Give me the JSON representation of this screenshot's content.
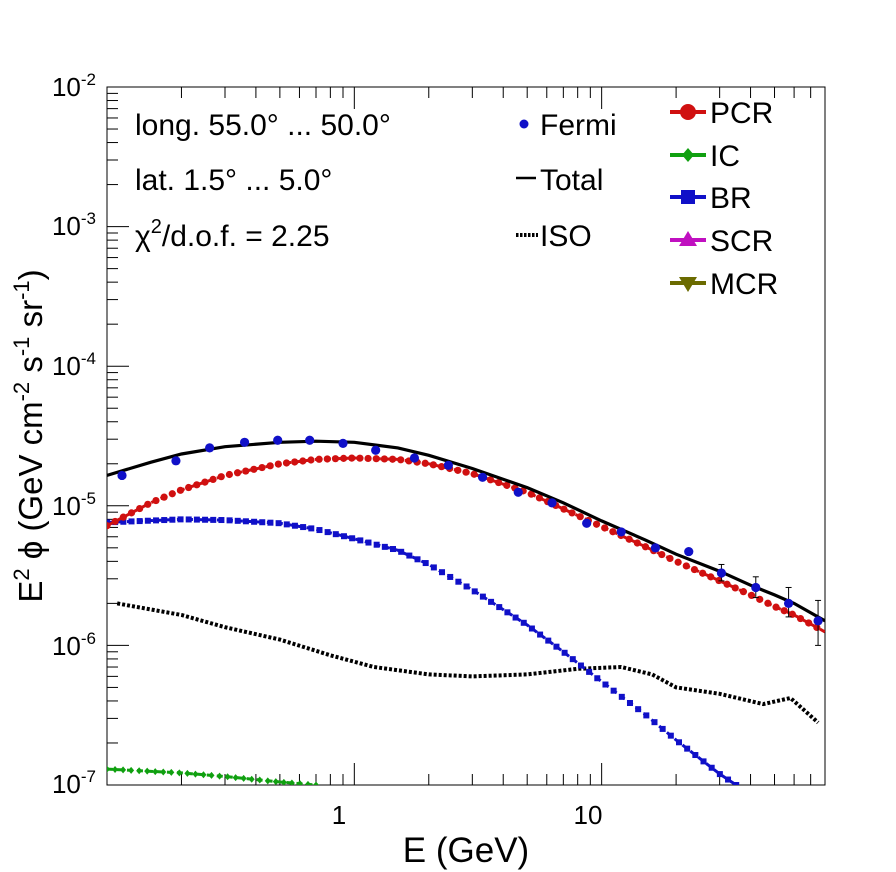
{
  "chart_data": {
    "type": "scatter",
    "xscale": "log",
    "yscale": "log",
    "xlim": [
      0.1,
      80
    ],
    "ylim": [
      1e-07,
      0.01
    ],
    "xlabel": "E (GeV)",
    "ylabel": "E² ϕ (GeV cm⁻² s⁻¹ sr⁻¹)",
    "ylabel_parts": {
      "e": "E",
      "exp2": "2",
      "phi": " ϕ (GeV cm",
      "exp_m2": "-2",
      "s": " s",
      "exp_m1a": "-1",
      "sr": " sr",
      "exp_m1b": "-1",
      "close": ")"
    },
    "xticks": [
      {
        "value": 1,
        "label": "1"
      },
      {
        "value": 10,
        "label": "10"
      }
    ],
    "yticks": [
      {
        "value": 1e-07,
        "base": "10",
        "exp": "-7"
      },
      {
        "value": 1e-06,
        "base": "10",
        "exp": "-6"
      },
      {
        "value": 1e-05,
        "base": "10",
        "exp": "-5"
      },
      {
        "value": 0.0001,
        "base": "10",
        "exp": "-4"
      },
      {
        "value": 0.001,
        "base": "10",
        "exp": "-3"
      },
      {
        "value": 0.01,
        "base": "10",
        "exp": "-2"
      }
    ],
    "annotations": {
      "longitude": "long. 55.0° ... 50.0°",
      "latitude": "lat. 1.5° ... 5.0°",
      "chi_symbol": "χ",
      "chi_exp": "2",
      "chi_rest": "/d.o.f. = 2.25"
    },
    "legend": {
      "left": [
        {
          "name": "Fermi",
          "style": "point",
          "color": "#1010c8"
        },
        {
          "name": "Total",
          "style": "line",
          "color": "#000000"
        },
        {
          "name": "ISO",
          "style": "dotted",
          "color": "#000000"
        }
      ],
      "right": [
        {
          "name": "PCR",
          "marker": "circle",
          "color": "#d01010"
        },
        {
          "name": "IC",
          "marker": "diamond",
          "color": "#10a010"
        },
        {
          "name": "BR",
          "marker": "square",
          "color": "#1010c8"
        },
        {
          "name": "SCR",
          "marker": "triangle-up",
          "color": "#c010c0"
        },
        {
          "name": "MCR",
          "marker": "triangle-down",
          "color": "#6b6b00"
        }
      ]
    },
    "fermi": {
      "x": [
        0.115,
        0.19,
        0.26,
        0.36,
        0.49,
        0.66,
        0.9,
        1.22,
        1.75,
        2.4,
        3.3,
        4.6,
        6.3,
        8.7,
        12,
        16.5,
        22.5,
        30.5,
        42,
        57,
        75
      ],
      "y": [
        1.65e-05,
        2.1e-05,
        2.6e-05,
        2.85e-05,
        2.95e-05,
        2.95e-05,
        2.8e-05,
        2.5e-05,
        2.2e-05,
        1.95e-05,
        1.6e-05,
        1.25e-05,
        1.05e-05,
        7.5e-06,
        6.5e-06,
        5e-06,
        4.7e-06,
        3.3e-06,
        2.6e-06,
        2e-06,
        1.5e-06
      ],
      "err_lo": [
        0,
        0,
        0,
        0,
        0,
        0,
        0,
        0,
        0,
        0,
        0,
        0,
        0,
        0,
        0,
        0,
        0,
        4e-07,
        4e-07,
        4e-07,
        5e-07
      ],
      "err_hi": [
        0,
        0,
        0,
        0,
        0,
        0,
        0,
        0,
        0,
        0,
        0,
        0,
        0,
        0,
        0,
        0,
        0,
        5e-07,
        5e-07,
        6e-07,
        6e-07
      ]
    },
    "series": [
      {
        "name": "Total",
        "color": "#000000",
        "style": "solid",
        "x": [
          0.1,
          0.15,
          0.2,
          0.3,
          0.5,
          0.7,
          1.0,
          1.5,
          2,
          3,
          5,
          7,
          10,
          15,
          20,
          30,
          40,
          50,
          60,
          80
        ],
        "y": [
          1.65e-05,
          2.05e-05,
          2.35e-05,
          2.65e-05,
          2.85e-05,
          2.9e-05,
          2.85e-05,
          2.6e-05,
          2.3e-05,
          1.85e-05,
          1.35e-05,
          1.05e-05,
          7.8e-06,
          5.7e-06,
          4.5e-06,
          3.4e-06,
          2.7e-06,
          2.3e-06,
          2e-06,
          1.5e-06
        ]
      },
      {
        "name": "PCR",
        "color": "#d01010",
        "style": "markers-circle",
        "x": [
          0.1,
          0.15,
          0.2,
          0.3,
          0.5,
          0.7,
          1.0,
          1.5,
          2,
          3,
          5,
          7,
          10,
          15,
          20,
          30,
          40,
          50,
          60,
          80
        ],
        "y": [
          7.2e-06,
          1.05e-05,
          1.3e-05,
          1.65e-05,
          2e-05,
          2.15e-05,
          2.2e-05,
          2.15e-05,
          2e-05,
          1.7e-05,
          1.25e-05,
          9.5e-06,
          7.1e-06,
          5.1e-06,
          4e-06,
          2.9e-06,
          2.3e-06,
          1.9e-06,
          1.65e-06,
          1.25e-06
        ]
      },
      {
        "name": "BR",
        "color": "#1010c8",
        "style": "markers-square",
        "x": [
          0.1,
          0.2,
          0.3,
          0.5,
          0.7,
          1.0,
          1.5,
          2,
          3,
          5,
          7,
          10,
          15,
          20,
          30,
          35
        ],
        "y": [
          7.6e-06,
          8e-06,
          7.9e-06,
          7.5e-06,
          6.8e-06,
          5.8e-06,
          4.8e-06,
          3.8e-06,
          2.5e-06,
          1.4e-06,
          9e-07,
          5.5e-07,
          3.2e-07,
          2.1e-07,
          1.2e-07,
          1e-07
        ]
      },
      {
        "name": "ISO",
        "color": "#000000",
        "style": "dotted",
        "x": [
          0.11,
          0.2,
          0.3,
          0.5,
          0.8,
          1.2,
          2,
          3,
          5,
          8,
          12,
          16,
          20,
          30,
          45,
          58,
          75
        ],
        "y": [
          2e-06,
          1.65e-06,
          1.35e-06,
          1.1e-06,
          8.5e-07,
          7e-07,
          6.2e-07,
          6e-07,
          6.2e-07,
          6.8e-07,
          7e-07,
          6.2e-07,
          5e-07,
          4.5e-07,
          3.8e-07,
          4.2e-07,
          2.8e-07
        ]
      },
      {
        "name": "IC",
        "color": "#10a010",
        "style": "markers-diamond",
        "x": [
          0.1,
          0.2,
          0.3,
          0.5,
          0.7
        ],
        "y": [
          1.3e-07,
          1.22e-07,
          1.15e-07,
          1.05e-07,
          1e-07
        ]
      }
    ]
  }
}
